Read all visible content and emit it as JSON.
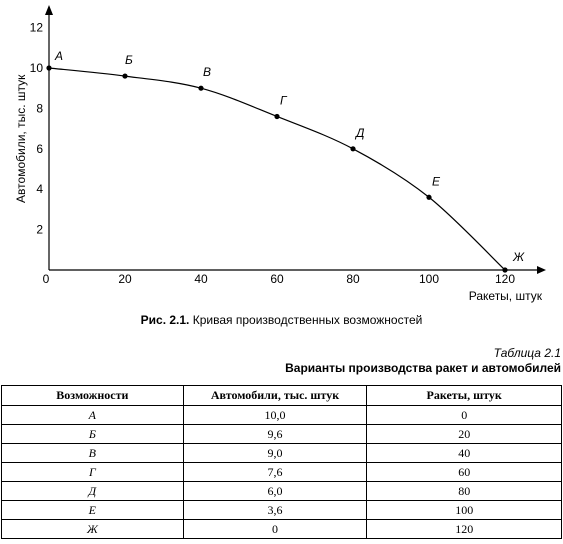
{
  "chart_data": {
    "type": "line",
    "ylabel": "Автомобили, тыс. штук",
    "xlabel": "Ракеты, штук",
    "xlim": [
      0,
      120
    ],
    "ylim": [
      0,
      12
    ],
    "x_ticks": [
      "0",
      "20",
      "40",
      "60",
      "80",
      "100",
      "120"
    ],
    "y_ticks": [
      "2",
      "4",
      "6",
      "8",
      "10",
      "12"
    ],
    "points": [
      {
        "label": "А",
        "x": 0,
        "y": 10.0
      },
      {
        "label": "Б",
        "x": 20,
        "y": 9.6
      },
      {
        "label": "В",
        "x": 40,
        "y": 9.0
      },
      {
        "label": "Г",
        "x": 60,
        "y": 7.6
      },
      {
        "label": "Д",
        "x": 80,
        "y": 6.0
      },
      {
        "label": "Е",
        "x": 100,
        "y": 3.6
      },
      {
        "label": "Ж",
        "x": 120,
        "y": 0
      }
    ],
    "grid": false,
    "legend": "none"
  },
  "figure_caption": {
    "prefix": "Рис. 2.1.",
    "text": "Кривая производственных возможностей"
  },
  "table": {
    "number": "Таблица 2.1",
    "title": "Варианты производства ракет и автомобилей",
    "headers": [
      "Возможности",
      "Автомобили, тыс. штук",
      "Ракеты, штук"
    ],
    "rows": [
      [
        "А",
        "10,0",
        "0"
      ],
      [
        "Б",
        "9,6",
        "20"
      ],
      [
        "В",
        "9,0",
        "40"
      ],
      [
        "Г",
        "7,6",
        "60"
      ],
      [
        "Д",
        "6,0",
        "80"
      ],
      [
        "Е",
        "3,6",
        "100"
      ],
      [
        "Ж",
        "0",
        "120"
      ]
    ]
  }
}
